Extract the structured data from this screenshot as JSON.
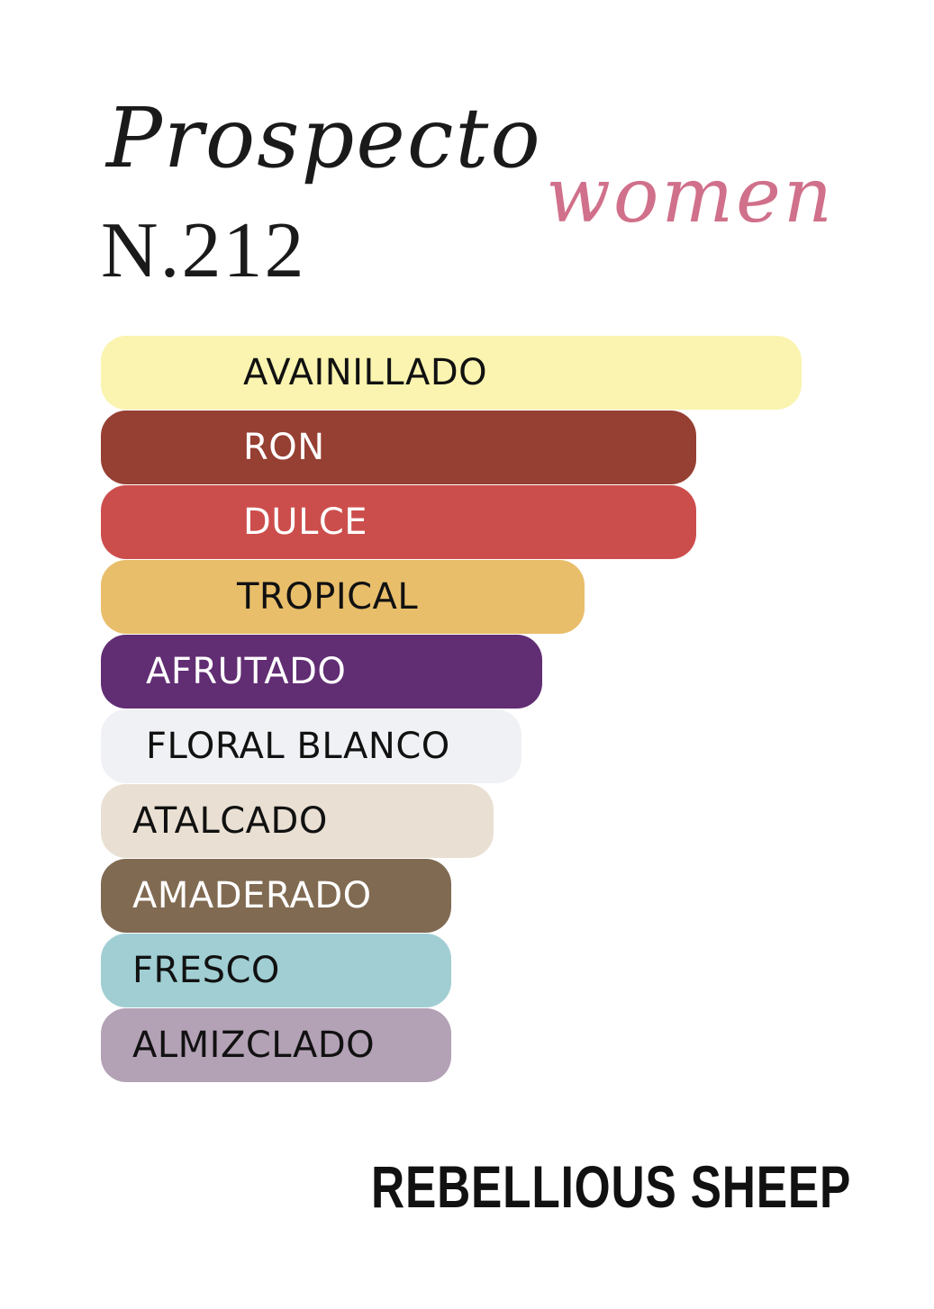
{
  "header": {
    "title": "Prospecto",
    "number": "N.212",
    "gender": "women"
  },
  "brand": "REBELLIOUS SHEEP",
  "colors": {
    "gender_text": "#d0708a"
  },
  "chart_data": {
    "type": "bar",
    "orientation": "horizontal",
    "categories": [
      "AVAINILLADO",
      "RON",
      "DULCE",
      "TROPICAL",
      "AFRUTADO",
      "FLORAL BLANCO",
      "ATALCADO",
      "AMADERADO",
      "FRESCO",
      "ALMIZCLADO"
    ],
    "values": [
      100,
      85,
      85,
      69,
      63,
      60,
      56,
      50,
      50,
      50
    ],
    "unit": "percent of strongest accord",
    "bar_colors": [
      "#faf4b0",
      "#963f33",
      "#cc4e4c",
      "#e9be6b",
      "#612d73",
      "#f0f1f5",
      "#e9e0d3",
      "#806a51",
      "#a0ced3",
      "#b3a1b5"
    ],
    "label_colors": [
      "#111111",
      "#ffffff",
      "#ffffff",
      "#111111",
      "#ffffff",
      "#111111",
      "#111111",
      "#ffffff",
      "#111111",
      "#111111"
    ],
    "grid": false,
    "axes": false
  }
}
